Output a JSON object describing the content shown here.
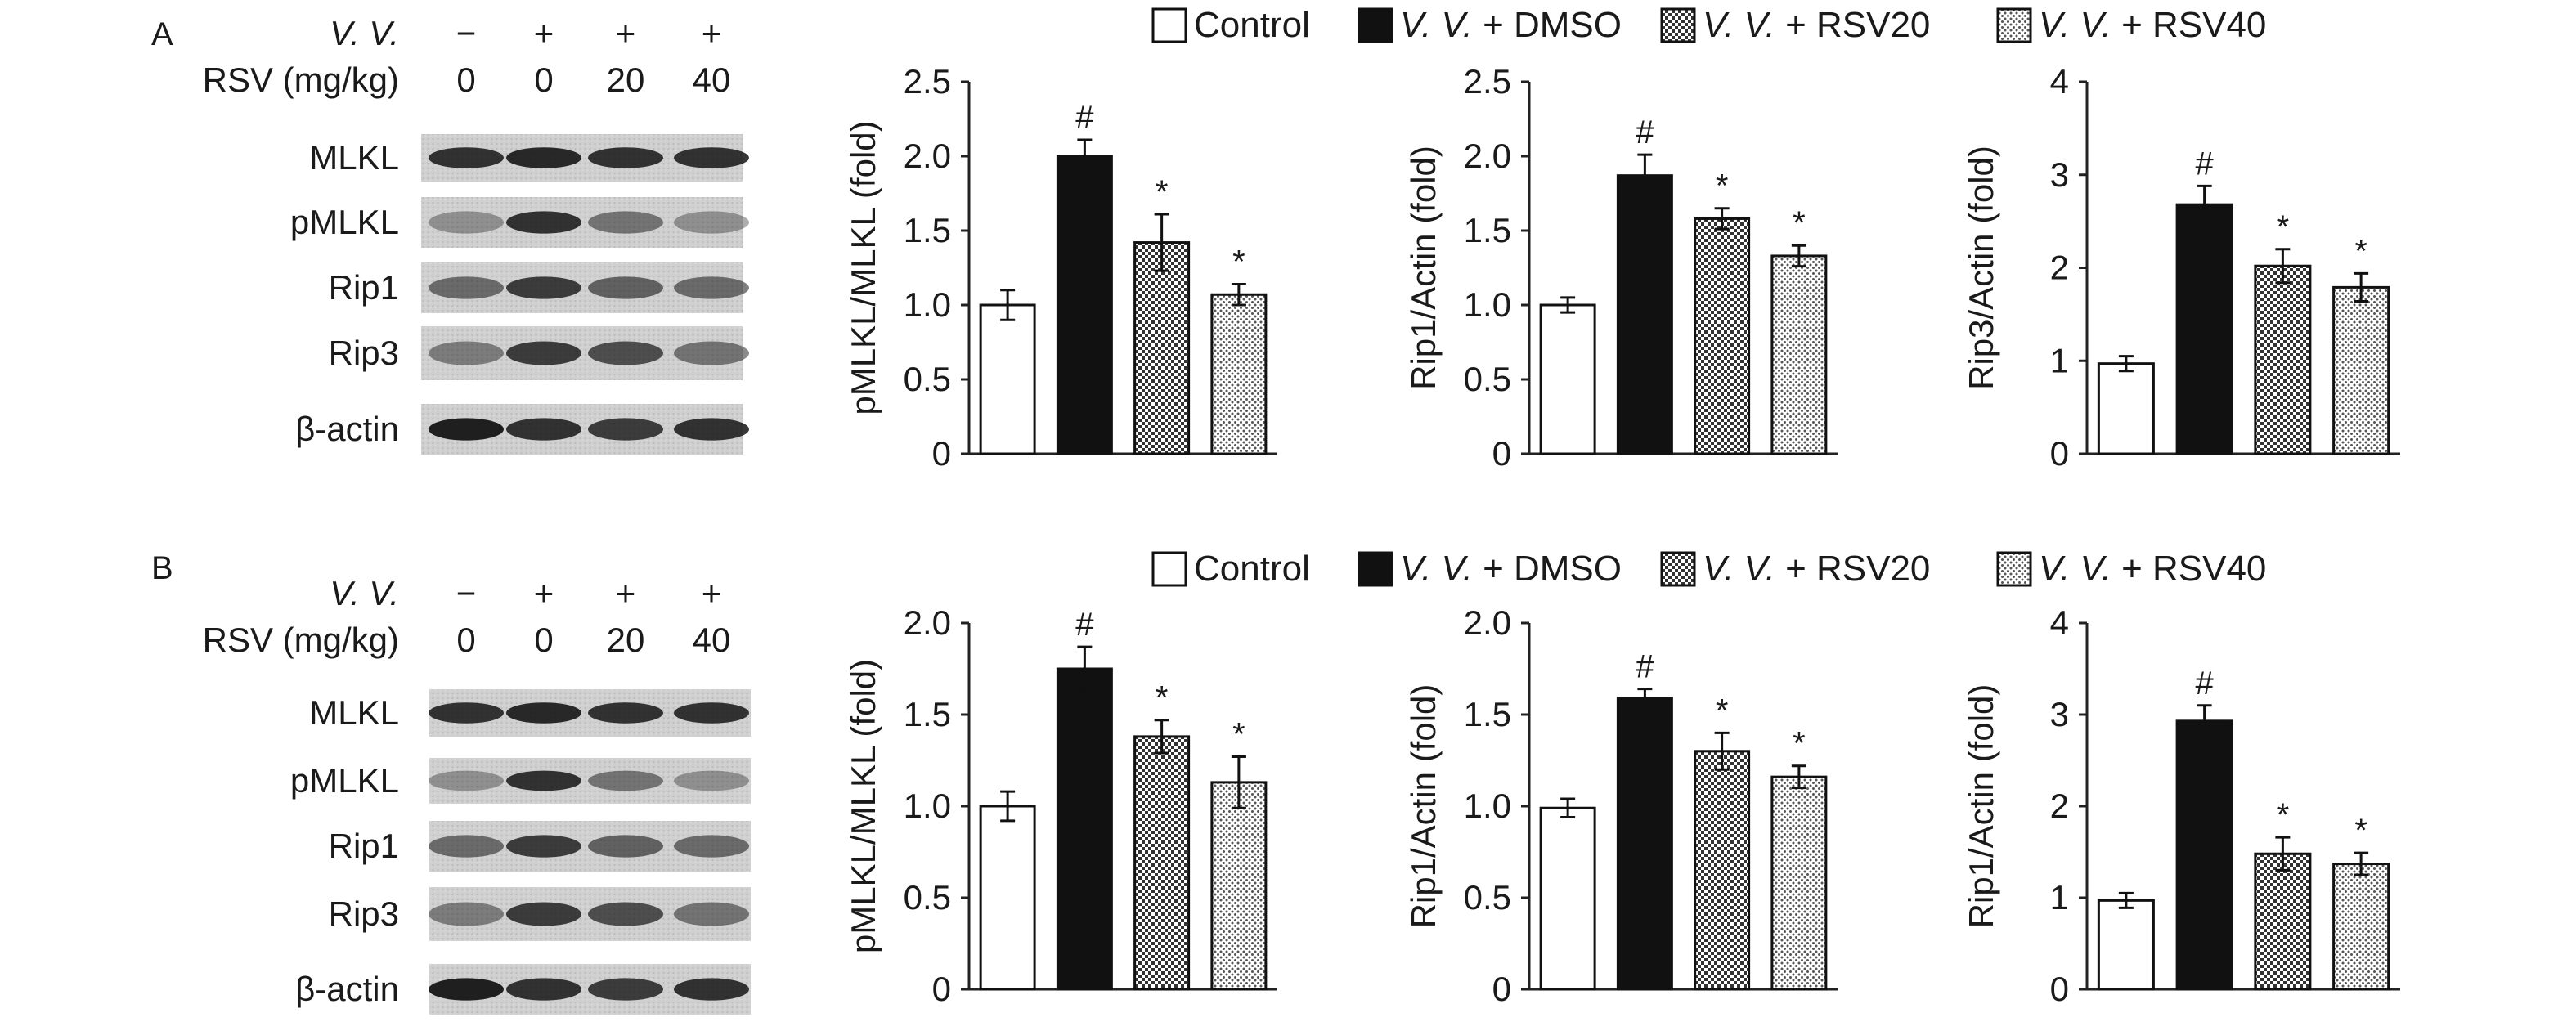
{
  "legend": [
    {
      "pre": "",
      "italic": "",
      "post": "Control",
      "fill": "#ffffff",
      "pattern": "none"
    },
    {
      "pre": "",
      "italic": "V. V.",
      "post": " + DMSO",
      "fill": "#111111",
      "pattern": "none"
    },
    {
      "pre": "",
      "italic": "V. V.",
      "post": " + RSV20",
      "fill": "#ffffff",
      "pattern": "checker"
    },
    {
      "pre": "",
      "italic": "V. V.",
      "post": " + RSV40",
      "fill": "#ffffff",
      "pattern": "dots"
    }
  ],
  "panels": [
    {
      "letter": "A",
      "vv_label": "V. V.",
      "vv_signs": [
        "−",
        "+",
        "+",
        "+"
      ],
      "rsv_label": "RSV (mg/kg)",
      "rsv_doses": [
        "0",
        "0",
        "20",
        "40"
      ],
      "blot_rows": [
        "MLKL",
        "pMLKL",
        "Rip1",
        "Rip3",
        "β-actin"
      ]
    },
    {
      "letter": "B",
      "vv_label": "V. V.",
      "vv_signs": [
        "−",
        "+",
        "+",
        "+"
      ],
      "rsv_label": "RSV (mg/kg)",
      "rsv_doses": [
        "0",
        "0",
        "20",
        "40"
      ],
      "blot_rows": [
        "MLKL",
        "pMLKL",
        "Rip1",
        "Rip3",
        "β-actin"
      ]
    }
  ],
  "chart_data": [
    {
      "type": "bar",
      "panel": "A",
      "ylabel": "pMLKL/MLKL (fold)",
      "ylim": [
        0,
        2.5
      ],
      "yticks": [
        "0",
        "0.5",
        "1.0",
        "1.5",
        "2.0",
        "2.5"
      ],
      "categories": [
        "Control",
        "V. V. + DMSO",
        "V. V. + RSV20",
        "V. V. + RSV40"
      ],
      "values": [
        1.0,
        2.0,
        1.42,
        1.07
      ],
      "errors": [
        0.1,
        0.11,
        0.19,
        0.07
      ],
      "annotations": [
        "",
        "#",
        "*",
        "*"
      ]
    },
    {
      "type": "bar",
      "panel": "A",
      "ylabel": "Rip1/Actin (fold)",
      "ylim": [
        0,
        2.5
      ],
      "yticks": [
        "0",
        "0.5",
        "1.0",
        "1.5",
        "2.0",
        "2.5"
      ],
      "categories": [
        "Control",
        "V. V. + DMSO",
        "V. V. + RSV20",
        "V. V. + RSV40"
      ],
      "values": [
        1.0,
        1.87,
        1.58,
        1.33
      ],
      "errors": [
        0.05,
        0.14,
        0.07,
        0.07
      ],
      "annotations": [
        "",
        "#",
        "*",
        "*"
      ]
    },
    {
      "type": "bar",
      "panel": "A",
      "ylabel": "Rip3/Actin (fold)",
      "ylim": [
        0,
        4
      ],
      "yticks": [
        "0",
        "1",
        "2",
        "3",
        "4"
      ],
      "categories": [
        "Control",
        "V. V. + DMSO",
        "V. V. + RSV20",
        "V. V. + RSV40"
      ],
      "values": [
        0.97,
        2.68,
        2.02,
        1.79
      ],
      "errors": [
        0.08,
        0.2,
        0.18,
        0.15
      ],
      "annotations": [
        "",
        "#",
        "*",
        "*"
      ]
    },
    {
      "type": "bar",
      "panel": "B",
      "ylabel": "pMLKL/MLKL (fold)",
      "ylim": [
        0,
        2.0
      ],
      "yticks": [
        "0",
        "0.5",
        "1.0",
        "1.5",
        "2.0"
      ],
      "categories": [
        "Control",
        "V. V. + DMSO",
        "V. V. + RSV20",
        "V. V. + RSV40"
      ],
      "values": [
        1.0,
        1.75,
        1.38,
        1.13
      ],
      "errors": [
        0.08,
        0.12,
        0.09,
        0.14
      ],
      "annotations": [
        "",
        "#",
        "*",
        "*"
      ]
    },
    {
      "type": "bar",
      "panel": "B",
      "ylabel": "Rip1/Actin (fold)",
      "ylim": [
        0,
        2.0
      ],
      "yticks": [
        "0",
        "0.5",
        "1.0",
        "1.5",
        "2.0"
      ],
      "categories": [
        "Control",
        "V. V. + DMSO",
        "V. V. + RSV20",
        "V. V. + RSV40"
      ],
      "values": [
        0.99,
        1.59,
        1.3,
        1.16
      ],
      "errors": [
        0.05,
        0.05,
        0.1,
        0.06
      ],
      "annotations": [
        "",
        "#",
        "*",
        "*"
      ]
    },
    {
      "type": "bar",
      "panel": "B",
      "ylabel": "Rip1/Actin (fold)",
      "ylim": [
        0,
        4
      ],
      "yticks": [
        "0",
        "1",
        "2",
        "3",
        "4"
      ],
      "categories": [
        "Control",
        "V. V. + DMSO",
        "V. V. + RSV20",
        "V. V. + RSV40"
      ],
      "values": [
        0.97,
        2.93,
        1.48,
        1.37
      ],
      "errors": [
        0.08,
        0.17,
        0.18,
        0.12
      ],
      "annotations": [
        "",
        "#",
        "*",
        "*"
      ]
    }
  ]
}
